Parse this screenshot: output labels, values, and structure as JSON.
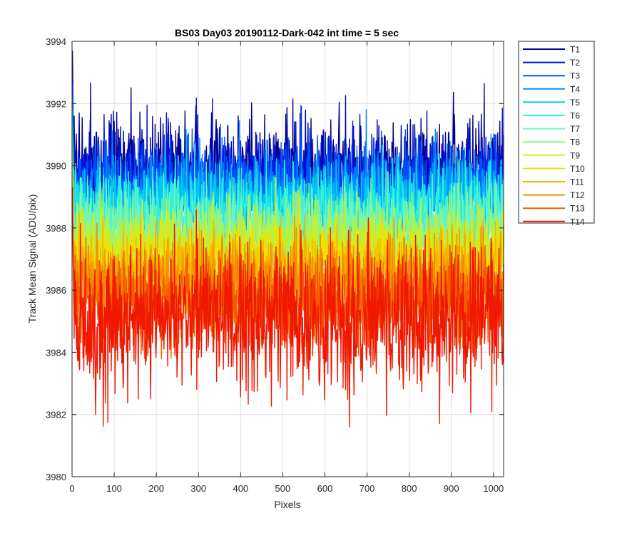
{
  "chart_data": {
    "type": "line",
    "title": "BS03 Day03 20190112-Dark-042 int time = 5 sec",
    "xlabel": "Pixels",
    "ylabel": "Track Mean Signal (ADU/pix)",
    "xlim": [
      0,
      1024
    ],
    "ylim": [
      3980,
      3994
    ],
    "xticks": [
      0,
      100,
      200,
      300,
      400,
      500,
      600,
      700,
      800,
      900,
      1000
    ],
    "yticks": [
      3980,
      3982,
      3984,
      3986,
      3988,
      3990,
      3992,
      3994
    ],
    "grid": true,
    "legend_position": "outside-top-right",
    "n_points": 1024,
    "series": [
      {
        "name": "T1",
        "color": "#00008f",
        "mean": 3989.9,
        "min": 3988.6,
        "max": 3993.7
      },
      {
        "name": "T2",
        "color": "#0011d6",
        "mean": 3989.6,
        "min": 3988.2,
        "max": 3992.9
      },
      {
        "name": "T3",
        "color": "#0050ff",
        "mean": 3989.3,
        "min": 3987.9,
        "max": 3992.6
      },
      {
        "name": "T4",
        "color": "#0090ff",
        "mean": 3989.0,
        "min": 3987.5,
        "max": 3992.2
      },
      {
        "name": "T5",
        "color": "#00c8f5",
        "mean": 3988.7,
        "min": 3987.1,
        "max": 3991.8
      },
      {
        "name": "T6",
        "color": "#30f0dd",
        "mean": 3988.4,
        "min": 3986.8,
        "max": 3991.4
      },
      {
        "name": "T7",
        "color": "#6af5c0",
        "mean": 3988.0,
        "min": 3986.4,
        "max": 3991.0
      },
      {
        "name": "T8",
        "color": "#8ef585",
        "mean": 3987.6,
        "min": 3986.0,
        "max": 3990.6
      },
      {
        "name": "T9",
        "color": "#c8f028",
        "mean": 3987.3,
        "min": 3985.6,
        "max": 3990.2
      },
      {
        "name": "T10",
        "color": "#f0e000",
        "mean": 3986.9,
        "min": 3985.2,
        "max": 3989.8
      },
      {
        "name": "T11",
        "color": "#f5b400",
        "mean": 3986.5,
        "min": 3984.8,
        "max": 3989.4
      },
      {
        "name": "T12",
        "color": "#f58a00",
        "mean": 3986.1,
        "min": 3984.3,
        "max": 3989.0
      },
      {
        "name": "T13",
        "color": "#f55a00",
        "mean": 3985.6,
        "min": 3983.8,
        "max": 3988.6
      },
      {
        "name": "T14",
        "color": "#f01800",
        "mean": 3985.1,
        "min": 3981.4,
        "max": 3989.3
      }
    ]
  }
}
